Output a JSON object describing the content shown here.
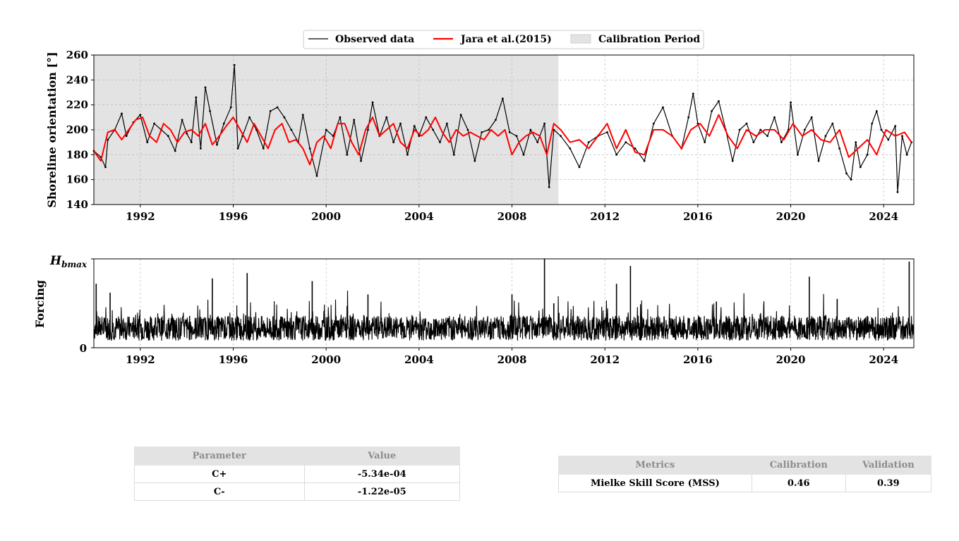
{
  "chart_data": [
    {
      "type": "line",
      "ylabel": "Shoreline orientation [°]",
      "xlim": [
        1990.0,
        2025.3
      ],
      "ylim": [
        140,
        260
      ],
      "x_ticks": [
        1992,
        1996,
        2000,
        2004,
        2008,
        2012,
        2016,
        2020,
        2024
      ],
      "x_tick_labels": [
        "1992",
        "1996",
        "2000",
        "2004",
        "2008",
        "2012",
        "2016",
        "2020",
        "2024"
      ],
      "y_ticks": [
        140,
        160,
        180,
        200,
        220,
        240,
        260
      ],
      "y_tick_labels": [
        "140",
        "160",
        "180",
        "200",
        "220",
        "240",
        "260"
      ],
      "grid": true,
      "legend": {
        "placement": "top-center, outside"
      },
      "calibration_period": {
        "start": 1990.0,
        "end": 2010.0,
        "label": "Calibration Period",
        "color": "#e3e3e3"
      },
      "series": [
        {
          "name": "Observed data",
          "color": "#000000",
          "x": [
            1990.0,
            1990.3,
            1990.5,
            1990.6,
            1990.9,
            1991.2,
            1991.4,
            1991.7,
            1992.0,
            1992.3,
            1992.6,
            1992.9,
            1993.2,
            1993.5,
            1993.8,
            1994.0,
            1994.2,
            1994.4,
            1994.6,
            1994.8,
            1995.0,
            1995.3,
            1995.6,
            1995.9,
            1996.05,
            1996.2,
            1996.4,
            1996.7,
            1997.0,
            1997.3,
            1997.6,
            1997.9,
            1998.2,
            1998.5,
            1998.8,
            1999.0,
            1999.3,
            1999.6,
            2000.0,
            2000.3,
            2000.6,
            2000.9,
            2001.2,
            2001.5,
            2001.8,
            2002.0,
            2002.3,
            2002.6,
            2002.9,
            2003.2,
            2003.5,
            2003.8,
            2004.0,
            2004.3,
            2004.6,
            2004.9,
            2005.2,
            2005.5,
            2005.8,
            2006.1,
            2006.4,
            2006.7,
            2007.0,
            2007.3,
            2007.6,
            2007.9,
            2008.2,
            2008.5,
            2008.8,
            2009.1,
            2009.4,
            2009.6,
            2009.8,
            2010.1,
            2010.5,
            2010.9,
            2011.3,
            2011.7,
            2012.1,
            2012.5,
            2012.9,
            2013.3,
            2013.7,
            2014.1,
            2014.5,
            2014.9,
            2015.3,
            2015.6,
            2015.8,
            2016.0,
            2016.3,
            2016.6,
            2016.9,
            2017.2,
            2017.5,
            2017.8,
            2018.1,
            2018.4,
            2018.7,
            2019.0,
            2019.3,
            2019.6,
            2019.9,
            2020.0,
            2020.3,
            2020.6,
            2020.9,
            2021.2,
            2021.5,
            2021.8,
            2022.1,
            2022.4,
            2022.6,
            2022.8,
            2023.0,
            2023.3,
            2023.5,
            2023.7,
            2023.9,
            2024.2,
            2024.5,
            2024.6,
            2024.8,
            2025.0,
            2025.2
          ],
          "y": [
            183,
            178,
            170,
            192,
            200,
            213,
            195,
            206,
            212,
            190,
            205,
            200,
            195,
            183,
            208,
            197,
            190,
            226,
            185,
            234,
            215,
            188,
            205,
            218,
            252,
            185,
            195,
            210,
            200,
            185,
            215,
            218,
            210,
            200,
            190,
            212,
            185,
            163,
            200,
            195,
            210,
            180,
            208,
            175,
            200,
            222,
            195,
            210,
            190,
            205,
            180,
            203,
            195,
            210,
            200,
            190,
            205,
            180,
            212,
            200,
            175,
            198,
            200,
            208,
            225,
            198,
            195,
            180,
            200,
            190,
            205,
            154,
            200,
            195,
            185,
            170,
            190,
            195,
            198,
            180,
            190,
            185,
            175,
            205,
            218,
            195,
            185,
            210,
            229,
            205,
            190,
            215,
            223,
            200,
            175,
            200,
            205,
            190,
            200,
            195,
            210,
            190,
            200,
            222,
            180,
            200,
            210,
            175,
            195,
            205,
            185,
            165,
            160,
            190,
            170,
            180,
            205,
            215,
            200,
            192,
            203,
            150,
            195,
            180,
            190
          ]
        },
        {
          "name": "Jara et al.(2015)",
          "color": "#ff0000",
          "x": [
            1990.0,
            1990.3,
            1990.6,
            1990.9,
            1991.2,
            1991.5,
            1991.8,
            1992.1,
            1992.4,
            1992.7,
            1993.0,
            1993.3,
            1993.6,
            1993.9,
            1994.2,
            1994.5,
            1994.8,
            1995.1,
            1995.4,
            1995.7,
            1996.0,
            1996.3,
            1996.6,
            1996.9,
            1997.2,
            1997.5,
            1997.8,
            1998.1,
            1998.4,
            1998.7,
            1999.0,
            1999.3,
            1999.6,
            1999.9,
            2000.2,
            2000.5,
            2000.8,
            2001.1,
            2001.4,
            2001.7,
            2002.0,
            2002.3,
            2002.6,
            2002.9,
            2003.2,
            2003.5,
            2003.8,
            2004.1,
            2004.4,
            2004.7,
            2005.0,
            2005.3,
            2005.6,
            2005.9,
            2006.2,
            2006.5,
            2006.8,
            2007.1,
            2007.4,
            2007.7,
            2008.0,
            2008.3,
            2008.6,
            2008.9,
            2009.2,
            2009.5,
            2009.8,
            2010.1,
            2010.5,
            2010.9,
            2011.3,
            2011.7,
            2012.1,
            2012.5,
            2012.9,
            2013.3,
            2013.7,
            2014.1,
            2014.5,
            2014.9,
            2015.3,
            2015.7,
            2016.1,
            2016.5,
            2016.9,
            2017.3,
            2017.7,
            2018.1,
            2018.5,
            2018.9,
            2019.3,
            2019.7,
            2020.1,
            2020.5,
            2020.9,
            2021.3,
            2021.7,
            2022.1,
            2022.5,
            2022.9,
            2023.3,
            2023.7,
            2024.1,
            2024.5,
            2024.9,
            2025.2
          ],
          "y": [
            183,
            175,
            198,
            200,
            192,
            200,
            208,
            210,
            195,
            190,
            205,
            200,
            190,
            198,
            200,
            195,
            205,
            188,
            195,
            203,
            210,
            200,
            190,
            205,
            195,
            185,
            200,
            205,
            190,
            192,
            185,
            172,
            190,
            195,
            185,
            205,
            205,
            190,
            180,
            200,
            210,
            195,
            200,
            205,
            190,
            185,
            200,
            195,
            200,
            210,
            198,
            190,
            200,
            195,
            198,
            195,
            192,
            200,
            195,
            200,
            180,
            190,
            195,
            198,
            195,
            180,
            205,
            200,
            190,
            192,
            185,
            195,
            205,
            185,
            200,
            182,
            180,
            200,
            200,
            195,
            185,
            200,
            205,
            195,
            212,
            195,
            185,
            200,
            195,
            200,
            200,
            192,
            205,
            195,
            200,
            192,
            190,
            200,
            178,
            185,
            192,
            180,
            200,
            195,
            198,
            190
          ]
        }
      ]
    },
    {
      "type": "line",
      "ylabel": "Forcing",
      "xlim": [
        1990.0,
        2025.3
      ],
      "ylim": [
        0,
        1
      ],
      "y_tick_labels": {
        "bottom": "0",
        "top_main": "H",
        "top_sub": "bmax"
      },
      "x_ticks": [
        1992,
        1996,
        2000,
        2004,
        2008,
        2012,
        2016,
        2020,
        2024
      ],
      "x_tick_labels": [
        "1992",
        "1996",
        "2000",
        "2004",
        "2008",
        "2012",
        "2016",
        "2020",
        "2024"
      ],
      "grid": true,
      "series": [
        {
          "color": "#000000",
          "x": [
            1990.1,
            1990.7,
            1995.1,
            1996.6,
            1999.4,
            2001.8,
            2008.0,
            2009.4,
            2009.8,
            2012.5,
            2013.1,
            2016.8,
            2020.8,
            2022.0,
            2025.1
          ],
          "spikes": [
            0.72,
            0.62,
            0.78,
            0.84,
            0.75,
            0.6,
            0.6,
            1.0,
            0.5,
            0.72,
            0.92,
            0.52,
            0.8,
            0.55,
            0.97
          ]
        }
      ]
    }
  ],
  "legend": {
    "observed_label": "Observed data",
    "model_label": "Jara et al.(2015)",
    "calibration_label": "Calibration Period"
  },
  "params_table": {
    "headers": [
      "Parameter",
      "Value"
    ],
    "rows": [
      [
        "C+",
        "-5.34e-04"
      ],
      [
        "C-",
        "-1.22e-05"
      ]
    ]
  },
  "metrics_table": {
    "headers": [
      "Metrics",
      "Calibration",
      "Validation"
    ],
    "rows": [
      [
        "Mielke Skill Score (MSS)",
        "0.46",
        "0.39"
      ]
    ]
  }
}
